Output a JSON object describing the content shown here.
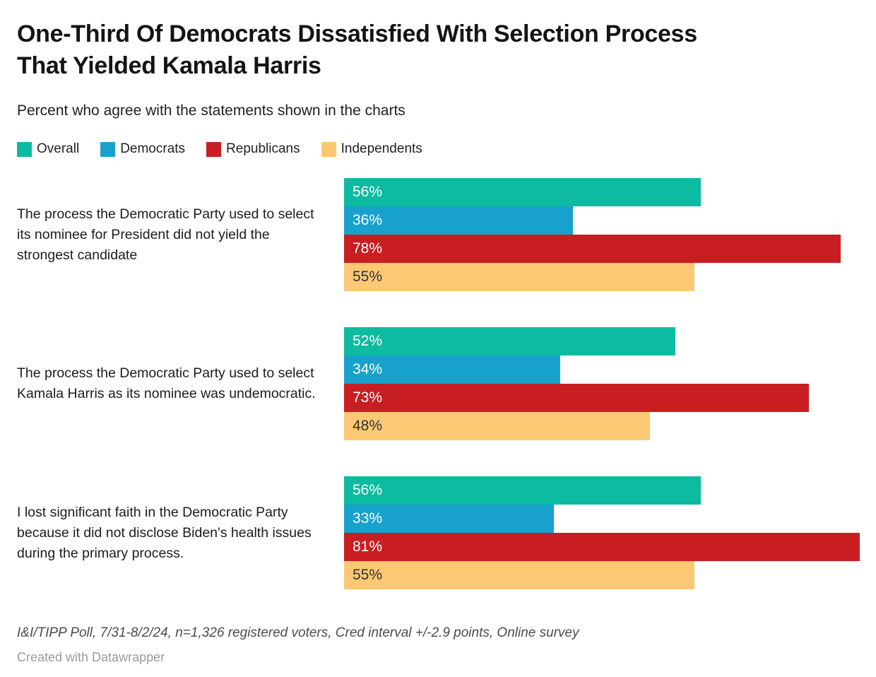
{
  "header": {
    "title": "One-Third Of Democrats Dissatisfied With Selection Process\nThat Yielded Kamala Harris",
    "subtitle": "Percent who agree with the statements shown in the charts"
  },
  "chart_data": {
    "type": "bar",
    "orientation": "horizontal",
    "title": "One-Third Of Democrats Dissatisfied With Selection Process That Yielded Kamala Harris",
    "subtitle": "Percent who agree with the statements shown in the charts",
    "legend_position": "top",
    "grid": false,
    "axis_max": 81,
    "value_suffix": "%",
    "categories": [
      "The process the Democratic Party used to select its nominee for President did not yield the strongest candidate",
      "The process the Democratic Party used to select Kamala Harris as its nominee was undemocratic.",
      "I lost significant faith in the Democratic Party because it did not disclose Biden's health issues during the primary process."
    ],
    "series": [
      {
        "name": "Overall",
        "color": "#0cbba0",
        "label_color": "#ffffff",
        "values": [
          56,
          52,
          56
        ]
      },
      {
        "name": "Democrats",
        "color": "#18a1cd",
        "label_color": "#ffffff",
        "values": [
          36,
          34,
          33
        ]
      },
      {
        "name": "Republicans",
        "color": "#c81e22",
        "label_color": "#ffffff",
        "values": [
          78,
          73,
          81
        ]
      },
      {
        "name": "Independents",
        "color": "#fcc873",
        "label_color": "#333333",
        "values": [
          55,
          48,
          55
        ]
      }
    ]
  },
  "footer": {
    "source": "I&I/TIPP Poll, 7/31-8/2/24, n=1,326 registered voters, Cred interval +/-2.9 points, Online survey",
    "credit": "Created with Datawrapper"
  }
}
